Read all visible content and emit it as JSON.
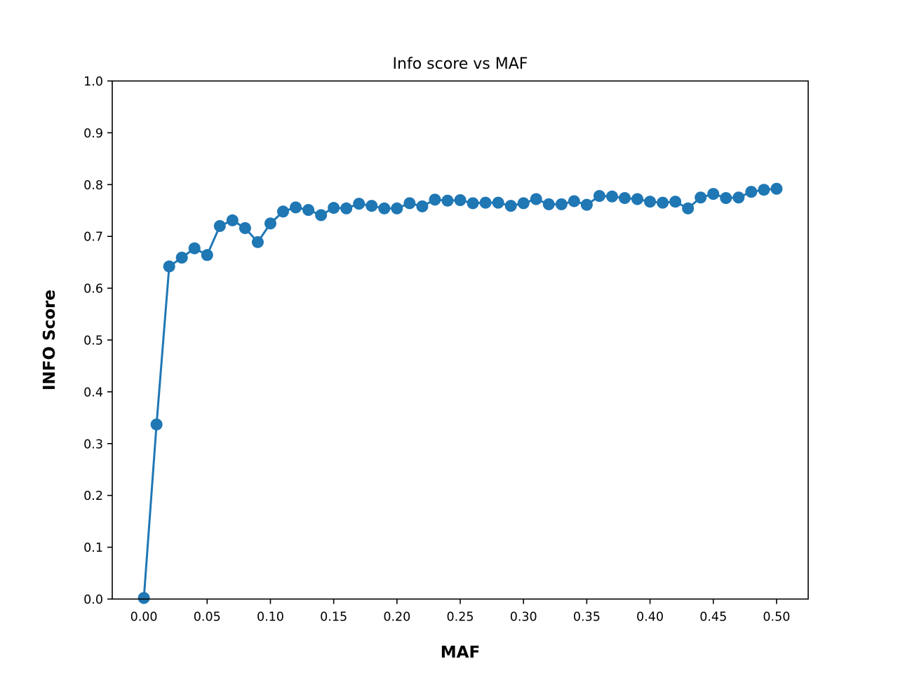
{
  "chart_data": {
    "type": "line",
    "title": "Info score vs MAF",
    "xlabel": "MAF",
    "ylabel": "INFO Score",
    "xlim": [
      -0.025,
      0.525
    ],
    "ylim": [
      0.0,
      1.0
    ],
    "grid": false,
    "marker": "circle",
    "color": "#1f77b4",
    "x_ticks": [
      "0.00",
      "0.05",
      "0.10",
      "0.15",
      "0.20",
      "0.25",
      "0.30",
      "0.35",
      "0.40",
      "0.45",
      "0.50"
    ],
    "x_tick_values": [
      0.0,
      0.05,
      0.1,
      0.15,
      0.2,
      0.25,
      0.3,
      0.35,
      0.4,
      0.45,
      0.5
    ],
    "y_ticks": [
      "0.0",
      "0.1",
      "0.2",
      "0.3",
      "0.4",
      "0.5",
      "0.6",
      "0.7",
      "0.8",
      "0.9",
      "1.0"
    ],
    "y_tick_values": [
      0.0,
      0.1,
      0.2,
      0.3,
      0.4,
      0.5,
      0.6,
      0.7,
      0.8,
      0.9,
      1.0
    ],
    "series": [
      {
        "x": [
          0.0,
          0.01,
          0.02,
          0.03,
          0.04,
          0.05,
          0.06,
          0.07,
          0.08,
          0.09,
          0.1,
          0.11,
          0.12,
          0.13,
          0.14,
          0.15,
          0.16,
          0.17,
          0.18,
          0.19,
          0.2,
          0.21,
          0.22,
          0.23,
          0.24,
          0.25,
          0.26,
          0.27,
          0.28,
          0.29,
          0.3,
          0.31,
          0.32,
          0.33,
          0.34,
          0.35,
          0.36,
          0.37,
          0.38,
          0.39,
          0.4,
          0.41,
          0.42,
          0.43,
          0.44,
          0.45,
          0.46,
          0.47,
          0.48,
          0.49,
          0.5
        ],
        "values": [
          0.002,
          0.337,
          0.642,
          0.659,
          0.677,
          0.664,
          0.72,
          0.731,
          0.716,
          0.689,
          0.725,
          0.748,
          0.756,
          0.751,
          0.741,
          0.755,
          0.754,
          0.763,
          0.759,
          0.754,
          0.754,
          0.764,
          0.758,
          0.771,
          0.769,
          0.77,
          0.764,
          0.765,
          0.765,
          0.759,
          0.764,
          0.772,
          0.762,
          0.762,
          0.768,
          0.761,
          0.778,
          0.777,
          0.774,
          0.772,
          0.767,
          0.765,
          0.767,
          0.754,
          0.775,
          0.782,
          0.774,
          0.775,
          0.786,
          0.79,
          0.792
        ]
      }
    ]
  }
}
